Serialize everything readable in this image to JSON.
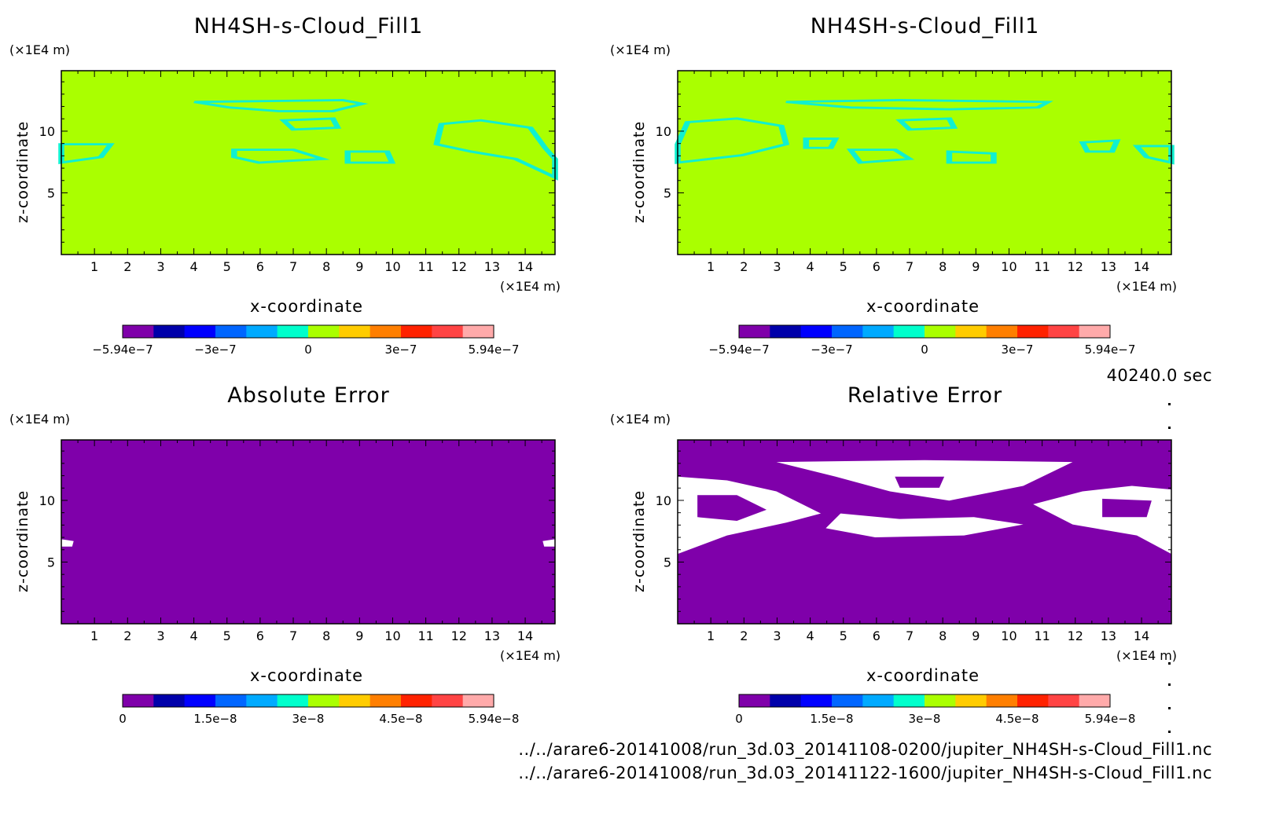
{
  "chart_data": [
    {
      "type": "heatmap",
      "title": "NH4SH-s-Cloud_Fill1",
      "xlabel": "x-coordinate",
      "ylabel": "z-coordinate",
      "x_unit": "(×1E4 m)",
      "y_unit": "(×1E4 m)",
      "xlim": [
        0,
        14.9
      ],
      "ylim": [
        0,
        14.9
      ],
      "x_ticks": [
        1,
        2,
        3,
        4,
        5,
        6,
        7,
        8,
        9,
        10,
        11,
        12,
        13,
        14
      ],
      "y_ticks": [
        5,
        10
      ],
      "background_color": "#aaff00",
      "contour_color": "#10f0d0",
      "colorbar": {
        "min": -5.94e-07,
        "max": 5.94e-07,
        "tick_labels": [
          "−5.94e−7",
          "−3e−7",
          "0",
          "3e−7",
          "5.94e−7"
        ],
        "colors": [
          "#7f00aa",
          "#0000aa",
          "#0000ff",
          "#0066ff",
          "#00aaff",
          "#00ffcc",
          "#aaff00",
          "#ffcc00",
          "#ff7f00",
          "#ff2200",
          "#ff4444",
          "#ffaaaa"
        ]
      }
    },
    {
      "type": "heatmap",
      "title": "NH4SH-s-Cloud_Fill1",
      "xlabel": "x-coordinate",
      "ylabel": "z-coordinate",
      "x_unit": "(×1E4 m)",
      "y_unit": "(×1E4 m)",
      "xlim": [
        0,
        14.9
      ],
      "ylim": [
        0,
        14.9
      ],
      "x_ticks": [
        1,
        2,
        3,
        4,
        5,
        6,
        7,
        8,
        9,
        10,
        11,
        12,
        13,
        14
      ],
      "y_ticks": [
        5,
        10
      ],
      "background_color": "#aaff00",
      "contour_color": "#10f0d0",
      "colorbar": {
        "min": -5.94e-07,
        "max": 5.94e-07,
        "tick_labels": [
          "−5.94e−7",
          "−3e−7",
          "0",
          "3e−7",
          "5.94e−7"
        ],
        "colors": [
          "#7f00aa",
          "#0000aa",
          "#0000ff",
          "#0066ff",
          "#00aaff",
          "#00ffcc",
          "#aaff00",
          "#ffcc00",
          "#ff7f00",
          "#ff2200",
          "#ff4444",
          "#ffaaaa"
        ]
      }
    },
    {
      "type": "heatmap",
      "title": "Absolute Error",
      "xlabel": "x-coordinate",
      "ylabel": "z-coordinate",
      "x_unit": "(×1E4 m)",
      "y_unit": "(×1E4 m)",
      "xlim": [
        0,
        14.9
      ],
      "ylim": [
        0,
        14.9
      ],
      "x_ticks": [
        1,
        2,
        3,
        4,
        5,
        6,
        7,
        8,
        9,
        10,
        11,
        12,
        13,
        14
      ],
      "y_ticks": [
        5,
        10
      ],
      "background_color": "#7f00aa",
      "contour_color": "#ffffff",
      "colorbar": {
        "min": 0,
        "max": 5.94e-08,
        "tick_labels": [
          "0",
          "1.5e−8",
          "3e−8",
          "4.5e−8",
          "5.94e−8"
        ],
        "colors": [
          "#7f00aa",
          "#0000aa",
          "#0000ff",
          "#0066ff",
          "#00aaff",
          "#00ffcc",
          "#aaff00",
          "#ffcc00",
          "#ff7f00",
          "#ff2200",
          "#ff4444",
          "#ffaaaa"
        ]
      }
    },
    {
      "type": "heatmap",
      "title": "Relative Error",
      "xlabel": "x-coordinate",
      "ylabel": "z-coordinate",
      "x_unit": "(×1E4 m)",
      "y_unit": "(×1E4 m)",
      "xlim": [
        0,
        14.9
      ],
      "ylim": [
        0,
        14.9
      ],
      "x_ticks": [
        1,
        2,
        3,
        4,
        5,
        6,
        7,
        8,
        9,
        10,
        11,
        12,
        13,
        14
      ],
      "y_ticks": [
        5,
        10
      ],
      "background_color": "#7f00aa",
      "contour_color": "#ffffff",
      "colorbar": {
        "min": 0,
        "max": 5.94e-08,
        "tick_labels": [
          "0",
          "1.5e−8",
          "3e−8",
          "4.5e−8",
          "5.94e−8"
        ],
        "colors": [
          "#7f00aa",
          "#0000aa",
          "#0000ff",
          "#0066ff",
          "#00aaff",
          "#00ffcc",
          "#aaff00",
          "#ffcc00",
          "#ff7f00",
          "#ff2200",
          "#ff4444",
          "#ffaaaa"
        ]
      }
    }
  ],
  "time_label": "40240.0 sec",
  "file_paths": [
    "../../arare6-20141008/run_3d.03_20141108-0200/jupiter_NH4SH-s-Cloud_Fill1.nc",
    "../../arare6-20141008/run_3d.03_20141122-1600/jupiter_NH4SH-s-Cloud_Fill1.nc"
  ]
}
